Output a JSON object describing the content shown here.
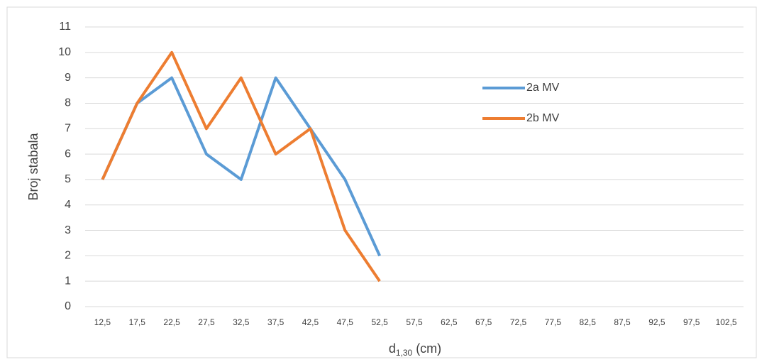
{
  "chart_data": {
    "type": "line",
    "y_label": "Broj stabala",
    "x_label": [
      "d",
      "1,30",
      "(cm)"
    ],
    "categories": [
      "12,5",
      "17,5",
      "22,5",
      "27,5",
      "32,5",
      "37,5",
      "42,5",
      "47,5",
      "52,5",
      "57,5",
      "62,5",
      "67,5",
      "72,5",
      "77,5",
      "82,5",
      "87,5",
      "92,5",
      "97,5",
      "102,5"
    ],
    "series": [
      {
        "name": "2a MV",
        "color": "#5b9bd5",
        "values": [
          5,
          8,
          9,
          6,
          5,
          9,
          7,
          5,
          2,
          null,
          null,
          null,
          null,
          null,
          null,
          null,
          null,
          null,
          null
        ]
      },
      {
        "name": "2b MV",
        "color": "#ed7d31",
        "values": [
          5,
          8,
          10,
          7,
          9,
          6,
          7,
          3,
          1,
          null,
          null,
          null,
          null,
          null,
          null,
          null,
          null,
          null,
          null
        ]
      }
    ],
    "ylim": [
      0,
      11
    ],
    "yticks": [
      0,
      1,
      2,
      3,
      4,
      5,
      6,
      7,
      8,
      9,
      10,
      11
    ],
    "grid": true
  }
}
